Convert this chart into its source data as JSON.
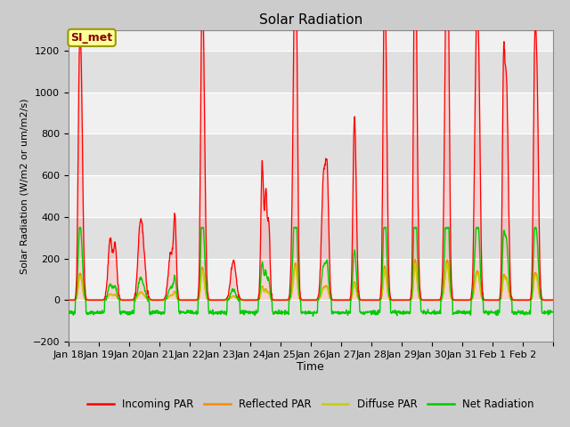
{
  "title": "Solar Radiation",
  "xlabel": "Time",
  "ylabel": "Solar Radiation (W/m2 or um/m2/s)",
  "ylim": [
    -200,
    1300
  ],
  "yticks": [
    -200,
    0,
    200,
    400,
    600,
    800,
    1000,
    1200
  ],
  "figure_bg": "#d8d8d8",
  "plot_bg_light": "#f0f0f0",
  "plot_bg_dark": "#e0e0e0",
  "legend_entries": [
    "Incoming PAR",
    "Reflected PAR",
    "Diffuse PAR",
    "Net Radiation"
  ],
  "legend_colors": [
    "#ff0000",
    "#ff8800",
    "#cccc00",
    "#00cc00"
  ],
  "station_label": "SI_met",
  "station_label_bg": "#ffff99",
  "station_label_border": "#999900",
  "station_label_text": "#880000",
  "days_labels": [
    "Jan 18",
    "Jan 19",
    "Jan 20",
    "Jan 21",
    "Jan 22",
    "Jan 23",
    "Jan 24",
    "Jan 25",
    "Jan 26",
    "Jan 27",
    "Jan 28",
    "Jan 29",
    "Jan 30",
    "Jan 31",
    "Feb 1",
    "Feb 2"
  ]
}
